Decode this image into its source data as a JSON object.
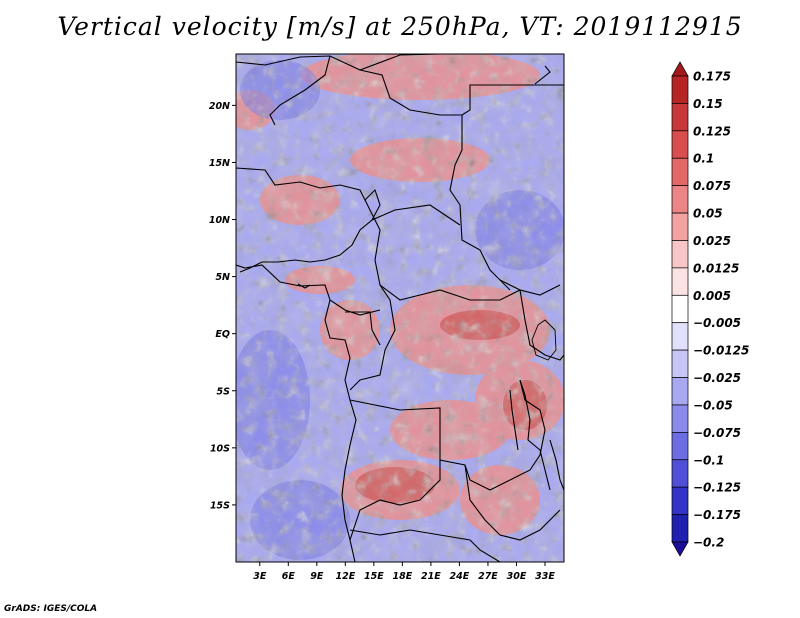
{
  "title": "Vertical velocity [m/s] at 250hPa, VT: 2019112915",
  "credit": "GrADS: IGES/COLA",
  "map": {
    "lat_labels": [
      "20N",
      "15N",
      "10N",
      "5N",
      "EQ",
      "5S",
      "10S",
      "15S"
    ],
    "lat_values": [
      20,
      15,
      10,
      5,
      0,
      -5,
      -10,
      -15
    ],
    "lon_labels": [
      "3E",
      "6E",
      "9E",
      "12E",
      "15E",
      "18E",
      "21E",
      "24E",
      "27E",
      "30E",
      "33E"
    ],
    "lon_values": [
      3,
      6,
      9,
      12,
      15,
      18,
      21,
      24,
      27,
      30,
      33
    ],
    "lon_range": [
      0.5,
      35
    ],
    "lat_range": [
      -20,
      24.5
    ],
    "field": "vertical velocity",
    "units": "m/s",
    "level": "250hPa"
  },
  "colorbar": {
    "labels": [
      "0.175",
      "0.15",
      "0.125",
      "0.1",
      "0.075",
      "0.05",
      "0.025",
      "0.0125",
      "0.005",
      "−0.005",
      "−0.0125",
      "−0.025",
      "−0.05",
      "−0.075",
      "−0.1",
      "−0.125",
      "−0.175",
      "−0.2"
    ],
    "colors": [
      "#a41919",
      "#b72424",
      "#c83737",
      "#d84d4d",
      "#e36868",
      "#ec8585",
      "#f3a2a2",
      "#f8c6c6",
      "#fce3e3",
      "#ffffff",
      "#e1e1fb",
      "#c7c7f7",
      "#a9a9f2",
      "#8b8bec",
      "#6c6ce3",
      "#4f4fd8",
      "#3333c8",
      "#1f1fb0",
      "#1a0f96"
    ]
  },
  "colors": {
    "background": "#ffffff",
    "neg_base": "#a6a6f2",
    "pos_base": "#ec8a8a"
  }
}
